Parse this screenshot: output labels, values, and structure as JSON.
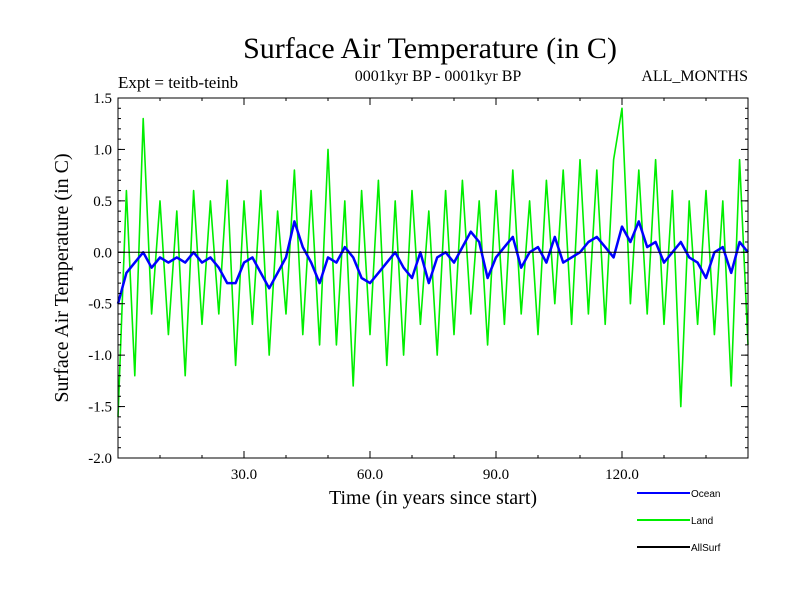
{
  "chart_data": {
    "type": "line",
    "title": "Surface Air Temperature (in C)",
    "subtitle_left": "Expt = teitb-teinb",
    "subtitle_center": "0001kyr BP - 0001kyr BP",
    "subtitle_right": "ALL_MONTHS",
    "xlabel": "Time (in years since start)",
    "ylabel": "Surface Air Temperature (in C)",
    "xlim": [
      0,
      150
    ],
    "ylim": [
      -2.0,
      1.5
    ],
    "xticks": [
      30,
      60,
      90,
      120
    ],
    "xtick_labels": [
      "30.0",
      "60.0",
      "90.0",
      "120.0"
    ],
    "yticks": [
      -2.0,
      -1.5,
      -1.0,
      -0.5,
      0.0,
      0.5,
      1.0,
      1.5
    ],
    "ytick_labels": [
      "-2.0",
      "-1.5",
      "-1.0",
      "-0.5",
      "0.0",
      "0.5",
      "1.0",
      "1.5"
    ],
    "legend_position": "bottom-right",
    "series": [
      {
        "name": "Ocean",
        "color": "#0000ff",
        "x": [
          0,
          2,
          4,
          6,
          8,
          10,
          12,
          14,
          16,
          18,
          20,
          22,
          24,
          26,
          28,
          30,
          32,
          34,
          36,
          38,
          40,
          42,
          44,
          46,
          48,
          50,
          52,
          54,
          56,
          58,
          60,
          62,
          64,
          66,
          68,
          70,
          72,
          74,
          76,
          78,
          80,
          82,
          84,
          86,
          88,
          90,
          92,
          94,
          96,
          98,
          100,
          102,
          104,
          106,
          108,
          110,
          112,
          114,
          116,
          118,
          120,
          122,
          124,
          126,
          128,
          130,
          132,
          134,
          136,
          138,
          140,
          142,
          144,
          146,
          148,
          150
        ],
        "values": [
          -0.5,
          -0.2,
          -0.1,
          0.0,
          -0.15,
          -0.05,
          -0.1,
          -0.05,
          -0.1,
          0.0,
          -0.1,
          -0.05,
          -0.15,
          -0.3,
          -0.3,
          -0.1,
          -0.05,
          -0.2,
          -0.35,
          -0.2,
          -0.05,
          0.3,
          0.05,
          -0.1,
          -0.3,
          -0.05,
          -0.1,
          0.05,
          -0.05,
          -0.25,
          -0.3,
          -0.2,
          -0.1,
          0.0,
          -0.15,
          -0.25,
          0.0,
          -0.3,
          -0.05,
          0.0,
          -0.1,
          0.05,
          0.2,
          0.1,
          -0.25,
          -0.05,
          0.05,
          0.15,
          -0.15,
          0.0,
          0.05,
          -0.1,
          0.15,
          -0.1,
          -0.05,
          0.0,
          0.1,
          0.15,
          0.05,
          -0.05,
          0.25,
          0.1,
          0.3,
          0.05,
          0.1,
          -0.1,
          0.0,
          0.1,
          -0.05,
          -0.1,
          -0.25,
          0.0,
          0.05,
          -0.2,
          0.1,
          0.0
        ]
      },
      {
        "name": "Land",
        "color": "#00ee00",
        "x": [
          0,
          2,
          4,
          6,
          8,
          10,
          12,
          14,
          16,
          18,
          20,
          22,
          24,
          26,
          28,
          30,
          32,
          34,
          36,
          38,
          40,
          42,
          44,
          46,
          48,
          50,
          52,
          54,
          56,
          58,
          60,
          62,
          64,
          66,
          68,
          70,
          72,
          74,
          76,
          78,
          80,
          82,
          84,
          86,
          88,
          90,
          92,
          94,
          96,
          98,
          100,
          102,
          104,
          106,
          108,
          110,
          112,
          114,
          116,
          118,
          120,
          122,
          124,
          126,
          128,
          130,
          132,
          134,
          136,
          138,
          140,
          142,
          144,
          146,
          148,
          150
        ],
        "values": [
          -1.6,
          0.6,
          -1.2,
          1.3,
          -0.6,
          0.5,
          -0.8,
          0.4,
          -1.2,
          0.6,
          -0.7,
          0.5,
          -0.6,
          0.7,
          -1.1,
          0.5,
          -0.7,
          0.6,
          -1.0,
          0.4,
          -0.6,
          0.8,
          -0.8,
          0.6,
          -0.9,
          1.0,
          -0.9,
          0.5,
          -1.3,
          0.6,
          -0.8,
          0.7,
          -1.1,
          0.5,
          -1.0,
          0.6,
          -0.7,
          0.4,
          -1.0,
          0.6,
          -0.8,
          0.7,
          -0.6,
          0.5,
          -0.9,
          0.6,
          -0.7,
          0.8,
          -0.6,
          0.5,
          -0.8,
          0.7,
          -0.5,
          0.8,
          -0.7,
          0.9,
          -0.6,
          0.8,
          -0.7,
          0.9,
          1.4,
          -0.5,
          0.8,
          -0.6,
          0.9,
          -0.7,
          0.6,
          -1.5,
          0.5,
          -0.7,
          0.6,
          -0.8,
          0.5,
          -1.3,
          0.9,
          -0.9
        ]
      },
      {
        "name": "AllSurf",
        "color": "#000000",
        "x": [
          0,
          150
        ],
        "values": [
          0.0,
          0.0
        ]
      }
    ]
  }
}
